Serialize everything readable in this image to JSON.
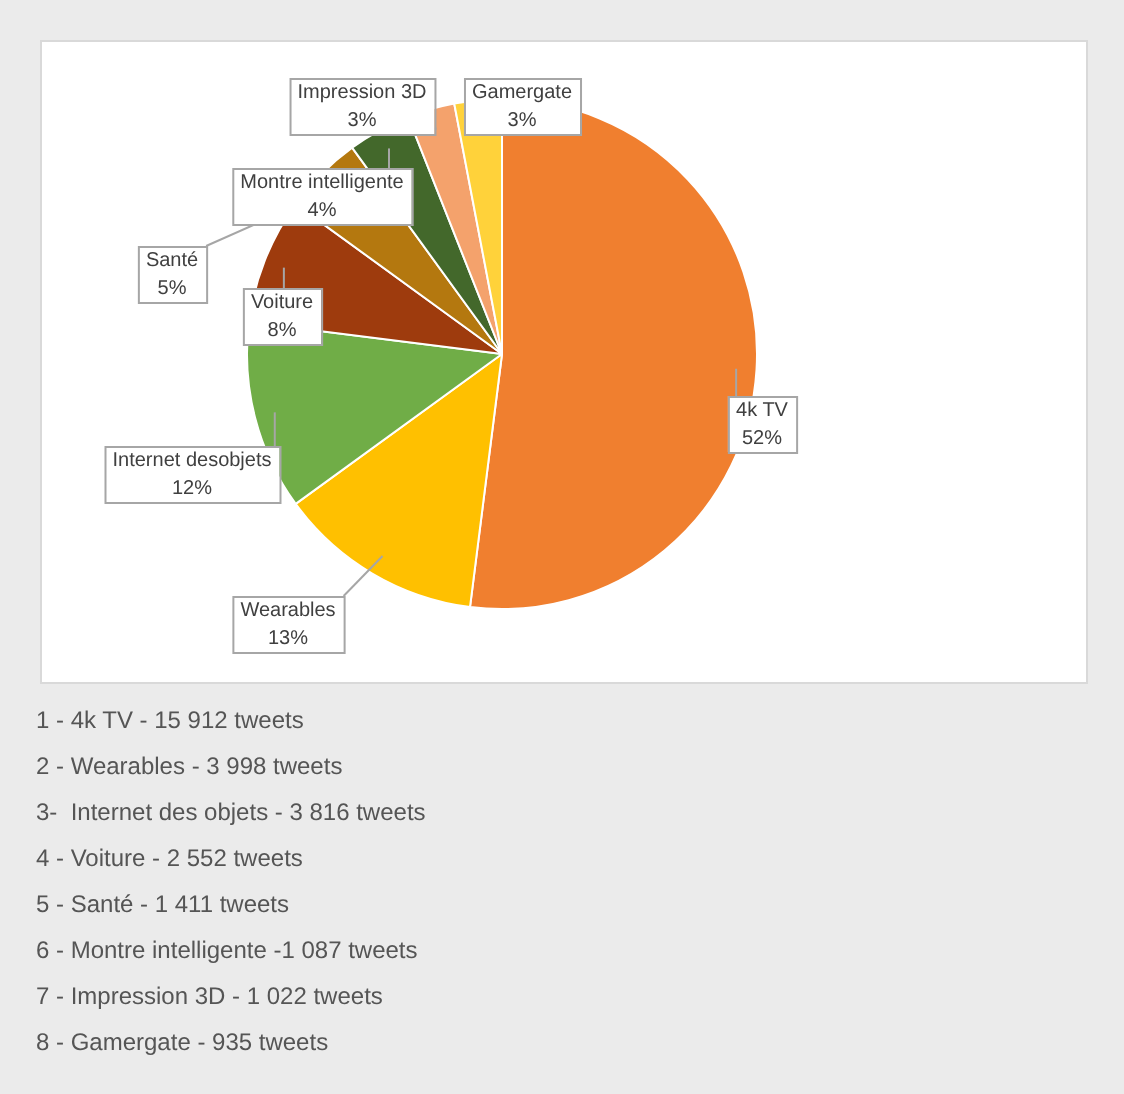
{
  "chart_data": {
    "type": "pie",
    "categories": [
      "4k TV",
      "Wearables",
      "Internet desobjets",
      "Voiture",
      "Santé",
      "Montre intelligente",
      "Impression 3D",
      "Gamergate"
    ],
    "values": [
      52,
      13,
      12,
      8,
      5,
      4,
      3,
      3
    ],
    "value_labels": [
      "52%",
      "13%",
      "12%",
      "8%",
      "5%",
      "4%",
      "3%",
      "3%"
    ],
    "colors": [
      "#f07f2f",
      "#ffc000",
      "#70ad47",
      "#9e3b0d",
      "#b4780f",
      "#43682b",
      "#f4a26c",
      "#ffd23a"
    ],
    "legend": false,
    "annotations": [
      "1 - 4k TV - 15 912 tweets",
      "2 - Wearables - 3 998 tweets",
      "3-  Internet des objets - 3 816 tweets",
      "4 - Voiture - 2 552 tweets",
      "5 - Santé - 1 411 tweets",
      "6 - Montre intelligente -1 087 tweets",
      "7 - Impression 3D - 1 022 tweets",
      "8 - Gamergate - 935 tweets"
    ]
  }
}
